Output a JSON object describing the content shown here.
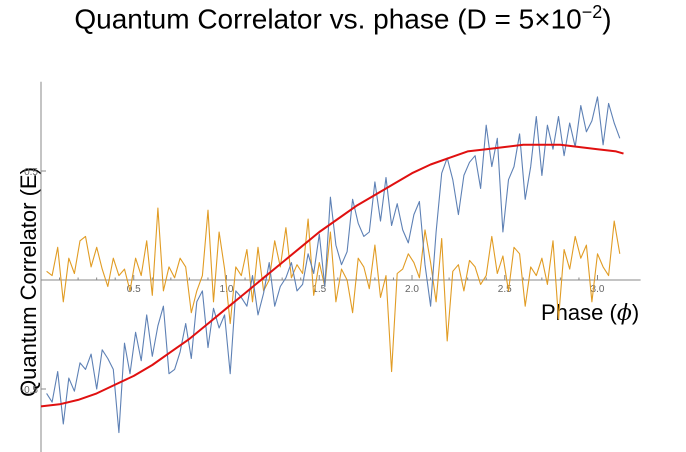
{
  "chart_data": {
    "type": "line",
    "title": {
      "prefix": "Quantum Correlator vs. phase (D = 5×10",
      "exponent": "−2",
      "suffix": ")"
    },
    "xlabel": {
      "text": "Phase (",
      "symbol": "ϕ",
      "suffix": ")"
    },
    "ylabel": "Quantum Correlator (E)",
    "xlim": [
      0,
      3.2
    ],
    "ylim": [
      -0.75,
      0.9
    ],
    "x_ticks": [
      0.5,
      1.0,
      1.5,
      2.0,
      2.5,
      3.0
    ],
    "x_tick_labels": [
      "0.5",
      "1.0",
      "1.5",
      "2.0",
      "2.5",
      "3.0"
    ],
    "y_ticks": [
      -0.5,
      0.5
    ],
    "y_tick_labels": [
      "-0.5",
      "0.5"
    ],
    "grid": false,
    "colors": {
      "noisy_blue": "#5e81b5",
      "noisy_orange": "#e19c24",
      "theory": "#e01010",
      "axis": "#888888"
    },
    "series": [
      {
        "color": "#5e81b5",
        "x": [
          0.03,
          0.06,
          0.09,
          0.12,
          0.15,
          0.18,
          0.21,
          0.24,
          0.27,
          0.3,
          0.33,
          0.36,
          0.39,
          0.42,
          0.45,
          0.48,
          0.51,
          0.54,
          0.57,
          0.6,
          0.63,
          0.66,
          0.69,
          0.72,
          0.75,
          0.78,
          0.81,
          0.84,
          0.87,
          0.9,
          0.93,
          0.96,
          0.99,
          1.02,
          1.05,
          1.08,
          1.11,
          1.14,
          1.17,
          1.2,
          1.23,
          1.26,
          1.29,
          1.32,
          1.35,
          1.38,
          1.41,
          1.44,
          1.47,
          1.5,
          1.53,
          1.56,
          1.59,
          1.62,
          1.65,
          1.68,
          1.71,
          1.74,
          1.77,
          1.8,
          1.83,
          1.86,
          1.89,
          1.92,
          1.95,
          1.98,
          2.01,
          2.04,
          2.07,
          2.1,
          2.13,
          2.16,
          2.19,
          2.22,
          2.25,
          2.28,
          2.31,
          2.34,
          2.37,
          2.4,
          2.43,
          2.46,
          2.49,
          2.52,
          2.55,
          2.58,
          2.61,
          2.64,
          2.67,
          2.7,
          2.73,
          2.76,
          2.79,
          2.82,
          2.85,
          2.88,
          2.91,
          2.94,
          2.97,
          3.0,
          3.03,
          3.06,
          3.09,
          3.12
        ],
        "y": [
          -0.52,
          -0.56,
          -0.42,
          -0.66,
          -0.45,
          -0.51,
          -0.38,
          -0.41,
          -0.34,
          -0.5,
          -0.32,
          -0.36,
          -0.41,
          -0.7,
          -0.29,
          -0.43,
          -0.24,
          -0.37,
          -0.16,
          -0.35,
          -0.21,
          -0.12,
          -0.43,
          -0.41,
          -0.33,
          -0.2,
          -0.36,
          -0.1,
          -0.05,
          -0.31,
          -0.13,
          -0.22,
          -0.16,
          -0.43,
          -0.05,
          -0.08,
          -0.12,
          0.02,
          -0.16,
          -0.06,
          0.08,
          -0.12,
          -0.03,
          0.01,
          0.08,
          -0.05,
          -0.02,
          0.12,
          0.03,
          0.21,
          -0.03,
          0.38,
          0.16,
          0.07,
          0.13,
          0.37,
          0.26,
          0.2,
          0.22,
          0.45,
          0.27,
          0.47,
          0.25,
          0.35,
          0.23,
          0.17,
          0.3,
          0.36,
          0.07,
          -0.12,
          0.22,
          0.49,
          0.56,
          0.46,
          0.3,
          0.48,
          0.54,
          0.57,
          0.42,
          0.71,
          0.52,
          0.65,
          0.22,
          0.46,
          0.52,
          0.67,
          0.37,
          0.52,
          0.75,
          0.48,
          0.71,
          0.6,
          0.75,
          0.57,
          0.72,
          0.61,
          0.8,
          0.68,
          0.73,
          0.84,
          0.62,
          0.81,
          0.72,
          0.65
        ]
      },
      {
        "color": "#e01010",
        "x": [
          0.0,
          0.1,
          0.2,
          0.3,
          0.4,
          0.5,
          0.6,
          0.7,
          0.8,
          0.9,
          1.0,
          1.1,
          1.2,
          1.3,
          1.4,
          1.5,
          1.6,
          1.7,
          1.8,
          1.9,
          2.0,
          2.1,
          2.2,
          2.3,
          2.4,
          2.5,
          2.6,
          2.7,
          2.8,
          2.9,
          3.0,
          3.1,
          3.14
        ],
        "y": [
          -0.58,
          -0.57,
          -0.55,
          -0.52,
          -0.48,
          -0.44,
          -0.39,
          -0.33,
          -0.27,
          -0.2,
          -0.13,
          -0.06,
          0.01,
          0.08,
          0.15,
          0.22,
          0.28,
          0.34,
          0.39,
          0.44,
          0.49,
          0.53,
          0.56,
          0.59,
          0.6,
          0.61,
          0.62,
          0.62,
          0.62,
          0.61,
          0.6,
          0.59,
          0.58
        ]
      },
      {
        "color": "#e19c24",
        "x": [
          0.03,
          0.06,
          0.09,
          0.12,
          0.15,
          0.18,
          0.21,
          0.24,
          0.27,
          0.3,
          0.33,
          0.36,
          0.39,
          0.42,
          0.45,
          0.48,
          0.51,
          0.54,
          0.57,
          0.6,
          0.63,
          0.66,
          0.69,
          0.72,
          0.75,
          0.78,
          0.81,
          0.84,
          0.87,
          0.9,
          0.93,
          0.96,
          0.99,
          1.02,
          1.05,
          1.08,
          1.11,
          1.14,
          1.17,
          1.2,
          1.23,
          1.26,
          1.29,
          1.32,
          1.35,
          1.38,
          1.41,
          1.44,
          1.47,
          1.5,
          1.53,
          1.56,
          1.59,
          1.62,
          1.65,
          1.68,
          1.71,
          1.74,
          1.77,
          1.8,
          1.83,
          1.86,
          1.89,
          1.92,
          1.95,
          1.98,
          2.01,
          2.04,
          2.07,
          2.1,
          2.13,
          2.16,
          2.19,
          2.22,
          2.25,
          2.28,
          2.31,
          2.34,
          2.37,
          2.4,
          2.43,
          2.46,
          2.49,
          2.52,
          2.55,
          2.58,
          2.61,
          2.64,
          2.67,
          2.7,
          2.73,
          2.76,
          2.79,
          2.82,
          2.85,
          2.88,
          2.91,
          2.94,
          2.97,
          3.0,
          3.03,
          3.06,
          3.09,
          3.12
        ],
        "y": [
          0.04,
          0.02,
          0.15,
          -0.1,
          0.1,
          0.03,
          0.18,
          0.2,
          0.06,
          0.15,
          0.05,
          -0.03,
          0.1,
          0.02,
          0.05,
          -0.05,
          0.1,
          0.02,
          0.18,
          -0.07,
          0.33,
          -0.05,
          0.06,
          0.01,
          0.1,
          0.06,
          -0.15,
          -0.05,
          0.02,
          0.32,
          -0.1,
          0.22,
          0.05,
          -0.2,
          0.06,
          0.02,
          0.14,
          -0.1,
          0.15,
          -0.05,
          0.0,
          0.18,
          0.06,
          0.24,
          0.01,
          0.07,
          0.03,
          0.28,
          -0.07,
          0.08,
          -0.03,
          0.22,
          -0.1,
          0.05,
          0.0,
          -0.15,
          0.1,
          0.06,
          -0.04,
          0.16,
          -0.08,
          0.02,
          -0.42,
          0.03,
          0.05,
          0.12,
          0.08,
          0.01,
          0.23,
          0.08,
          -0.1,
          0.19,
          -0.28,
          0.04,
          0.07,
          -0.05,
          0.09,
          0.06,
          -0.02,
          0.02,
          0.2,
          0.03,
          0.11,
          -0.05,
          0.15,
          0.12,
          -0.12,
          0.06,
          0.02,
          0.1,
          -0.02,
          0.18,
          -0.18,
          0.14,
          0.05,
          0.2,
          0.1,
          0.16,
          -0.1,
          0.12,
          0.06,
          0.02,
          0.27,
          0.12
        ]
      }
    ]
  }
}
